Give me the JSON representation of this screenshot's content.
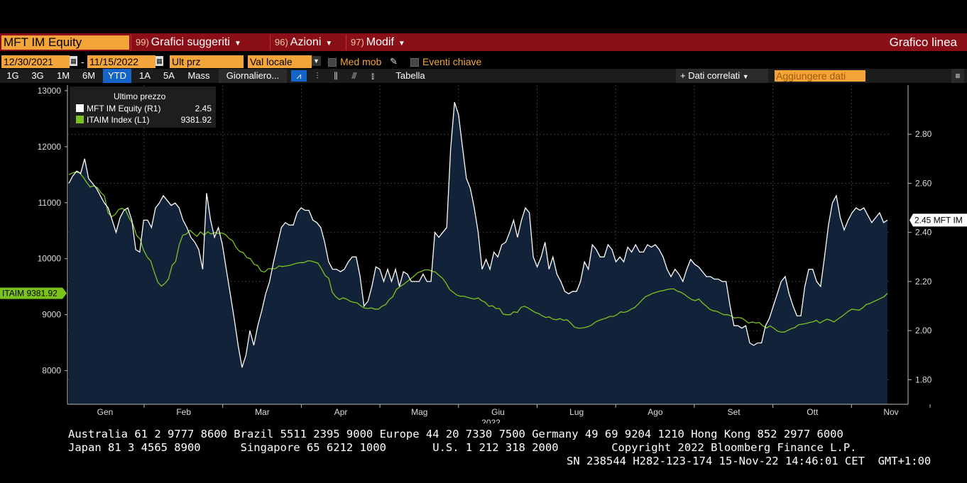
{
  "header": {
    "ticker": "MFT IM Equity",
    "menus": [
      {
        "num": "99)",
        "label": "Grafici suggeriti"
      },
      {
        "num": "96)",
        "label": "Azioni"
      },
      {
        "num": "97)",
        "label": "Modif"
      }
    ],
    "chart_type_label": "Grafico linea"
  },
  "controls": {
    "start_date": "12/30/2021",
    "end_date": "11/15/2022",
    "dash": "-",
    "field": "Ult prz",
    "currency": "Val locale",
    "moving_avg": "Med mob",
    "key_events": "Eventi chiave"
  },
  "tabs": {
    "periods": [
      "1G",
      "3G",
      "1M",
      "6M",
      "YTD",
      "1A",
      "5A",
      "Mass"
    ],
    "active": "YTD",
    "frequency": "Giornaliero...",
    "table": "Tabella",
    "related": "+ Dati correlati",
    "add_data_placeholder": "Aggiungere dati"
  },
  "legend": {
    "title": "Ultimo prezzo",
    "items": [
      {
        "name": "MFT IM Equity  (R1)",
        "value": "2.45",
        "color": "#ffffff"
      },
      {
        "name": "ITAIM Index  (L1)",
        "value": "9381.92",
        "color": "#7cc21f"
      }
    ]
  },
  "badges": {
    "left": "ITAIM 9381.92",
    "right": "2.45 MFT IM"
  },
  "chart_data": {
    "type": "line",
    "x_labels": [
      "Gen",
      "Feb",
      "Mar",
      "Apr",
      "Mag",
      "Giu",
      "Lug",
      "Ago",
      "Set",
      "Ott",
      "Nov"
    ],
    "year_label": "2022",
    "left_axis": {
      "ticks": [
        8000,
        9000,
        10000,
        11000,
        12000,
        13000
      ],
      "range": [
        7400,
        13100
      ]
    },
    "right_axis": {
      "ticks": [
        "1.80",
        "2.00",
        "2.20",
        "2.40",
        "2.60",
        "2.80"
      ],
      "range": [
        1.7,
        3.0
      ]
    },
    "series": [
      {
        "name": "MFT IM Equity",
        "axis": "right",
        "color": "#ffffff",
        "values": [
          2.6,
          2.63,
          2.65,
          2.64,
          2.7,
          2.62,
          2.6,
          2.58,
          2.55,
          2.52,
          2.5,
          2.45,
          2.4,
          2.46,
          2.49,
          2.5,
          2.45,
          2.33,
          2.32,
          2.45,
          2.45,
          2.42,
          2.5,
          2.52,
          2.55,
          2.53,
          2.51,
          2.52,
          2.5,
          2.45,
          2.42,
          2.38,
          2.36,
          2.33,
          2.25,
          2.56,
          2.45,
          2.38,
          2.42,
          2.35,
          2.25,
          2.15,
          2.05,
          1.94,
          1.85,
          1.9,
          2.0,
          1.94,
          2.02,
          2.08,
          2.15,
          2.2,
          2.28,
          2.35,
          2.42,
          2.44,
          2.43,
          2.43,
          2.48,
          2.5,
          2.49,
          2.49,
          2.45,
          2.44,
          2.42,
          2.36,
          2.28,
          2.25,
          2.25,
          2.24,
          2.25,
          2.28,
          2.3,
          2.3,
          2.22,
          2.1,
          2.12,
          2.18,
          2.26,
          2.25,
          2.2,
          2.25,
          2.2,
          2.25,
          2.18,
          2.24,
          2.23,
          2.2,
          2.2,
          2.2,
          2.23,
          2.2,
          2.2,
          2.4,
          2.38,
          2.4,
          2.42,
          2.74,
          2.93,
          2.88,
          2.75,
          2.62,
          2.58,
          2.5,
          2.4,
          2.25,
          2.29,
          2.25,
          2.32,
          2.3,
          2.35,
          2.36,
          2.4,
          2.45,
          2.38,
          2.45,
          2.5,
          2.48,
          2.3,
          2.26,
          2.3,
          2.36,
          2.25,
          2.3,
          2.23,
          2.2,
          2.16,
          2.15,
          2.16,
          2.16,
          2.2,
          2.28,
          2.25,
          2.35,
          2.33,
          2.3,
          2.3,
          2.35,
          2.33,
          2.28,
          2.3,
          2.28,
          2.34,
          2.32,
          2.35,
          2.32,
          2.32,
          2.35,
          2.34,
          2.35,
          2.33,
          2.3,
          2.25,
          2.22,
          2.25,
          2.23,
          2.2,
          2.25,
          2.29,
          2.27,
          2.26,
          2.24,
          2.22,
          2.22,
          2.21,
          2.21,
          2.2,
          2.2,
          2.1,
          2.02,
          2.02,
          2.01,
          2.02,
          1.95,
          1.94,
          1.95,
          1.95,
          2.02,
          2.05,
          2.1,
          2.15,
          2.2,
          2.22,
          2.15,
          2.1,
          2.06,
          2.06,
          2.18,
          2.25,
          2.25,
          2.2,
          2.18,
          2.3,
          2.43,
          2.52,
          2.55,
          2.46,
          2.41,
          2.45,
          2.48,
          2.5,
          2.49,
          2.5,
          2.47,
          2.44,
          2.46,
          2.48,
          2.44,
          2.45
        ],
        "last": 2.45
      },
      {
        "name": "ITAIM Index",
        "axis": "left",
        "color": "#7cc21f",
        "values": [
          11500,
          11530,
          11550,
          11530,
          11460,
          11360,
          11280,
          11300,
          11270,
          11180,
          11120,
          10820,
          10750,
          10790,
          10880,
          10900,
          10860,
          10720,
          10620,
          10420,
          10350,
          10150,
          10030,
          9960,
          9760,
          9580,
          9510,
          9560,
          9640,
          9880,
          9950,
          10250,
          10420,
          10440,
          10510,
          10450,
          10400,
          10480,
          10420,
          10480,
          10440,
          10470,
          10450,
          10460,
          10430,
          10360,
          10320,
          10200,
          10130,
          10110,
          10020,
          10000,
          9900,
          9880,
          9780,
          9760,
          9820,
          9820,
          9820,
          9870,
          9860,
          9870,
          9880,
          9900,
          9920,
          9930,
          9930,
          9960,
          9960,
          9940,
          9920,
          9820,
          9700,
          9650,
          9400,
          9320,
          9270,
          9300,
          9280,
          9240,
          9220,
          9210,
          9160,
          9120,
          9110,
          9120,
          9100,
          9100,
          9150,
          9180,
          9270,
          9320,
          9450,
          9500,
          9540,
          9590,
          9640,
          9690,
          9750,
          9770,
          9800,
          9800,
          9780,
          9760,
          9700,
          9650,
          9560,
          9450,
          9400,
          9350,
          9330,
          9330,
          9310,
          9290,
          9280,
          9300,
          9250,
          9220,
          9150,
          9160,
          9110,
          9110,
          9010,
          9000,
          9000,
          9050,
          9040,
          9130,
          9150,
          9120,
          9080,
          9040,
          9020,
          8980,
          8950,
          8960,
          8920,
          8910,
          8930,
          8900,
          8910,
          8850,
          8780,
          8760,
          8760,
          8770,
          8790,
          8820,
          8870,
          8900,
          8920,
          8940,
          8970,
          8970,
          9000,
          9050,
          9040,
          9060,
          9100,
          9130,
          9190,
          9260,
          9320,
          9350,
          9380,
          9400,
          9420,
          9430,
          9450,
          9460,
          9460,
          9420,
          9400,
          9360,
          9310,
          9270,
          9250,
          9280,
          9210,
          9160,
          9100,
          9070,
          9060,
          9030,
          9000,
          9000,
          8980,
          8940,
          8950,
          8940,
          8900,
          8850,
          8870,
          8850,
          8860,
          8800,
          8760,
          8800,
          8760,
          8710,
          8690,
          8690,
          8720,
          8750,
          8770,
          8820,
          8830,
          8840,
          8860,
          8870,
          8900,
          8850,
          8890,
          8920,
          8900,
          8870,
          8920,
          8960,
          9010,
          9060,
          9100,
          9090,
          9080,
          9120,
          9180,
          9200,
          9230,
          9260,
          9290,
          9320,
          9381.92
        ],
        "last": 9381.92
      }
    ],
    "grid": true,
    "legend_position": "top-left"
  },
  "footer": {
    "line1": "Australia 61 2 9777 8600 Brazil 5511 2395 9000 Europe 44 20 7330 7500 Germany 49 69 9204 1210 Hong Kong 852 2977 6000",
    "line2": "Japan 81 3 4565 8900      Singapore 65 6212 1000       U.S. 1 212 318 2000        Copyright 2022 Bloomberg Finance L.P.",
    "line3": "SN 238544 H282-123-174 15-Nov-22 14:46:01 CET  GMT+1:00"
  }
}
